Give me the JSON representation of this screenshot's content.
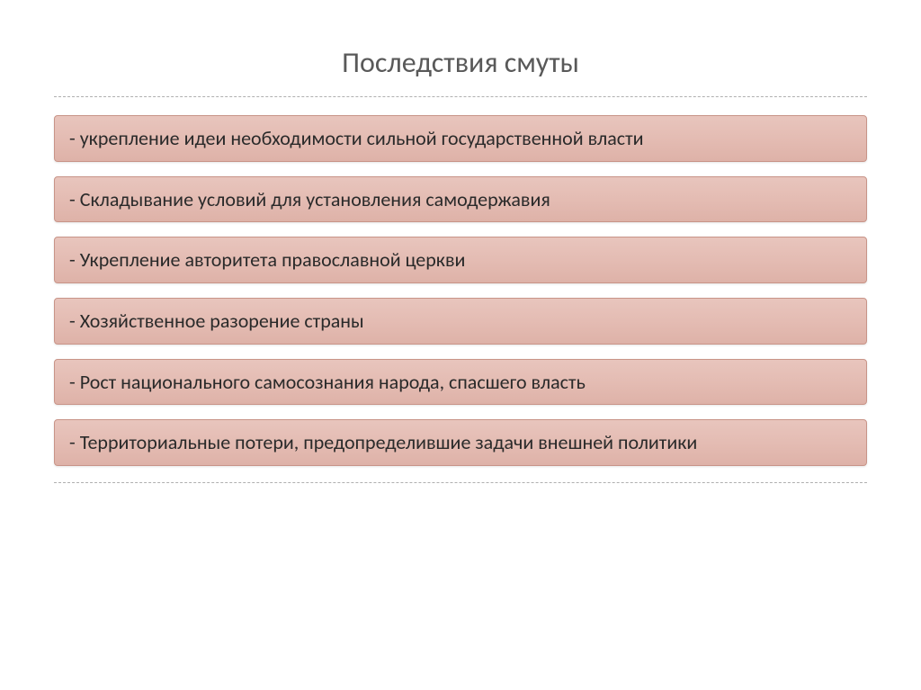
{
  "slide": {
    "title": "Последствия смуты",
    "items": [
      "- укрепление идеи необходимости сильной государственной власти",
      "- Складывание условий для установления самодержавия",
      "- Укрепление авторитета православной церкви",
      "- Хозяйственное разорение страны",
      "- Рост национального самосознания народа, спасшего власть",
      "- Территориальные потери, предопределившие задачи внешней политики"
    ],
    "styling": {
      "background_color": "#ffffff",
      "title_color": "#595959",
      "title_fontsize": 32,
      "item_bg_gradient_start": "#e8c5bd",
      "item_bg_gradient_mid": "#e4bcb3",
      "item_bg_gradient_end": "#deb2a8",
      "item_border_color": "#c89488",
      "item_text_color": "#2a2a2a",
      "item_fontsize": 22,
      "divider_color": "#b0b0b0",
      "divider_style": "dashed"
    }
  }
}
